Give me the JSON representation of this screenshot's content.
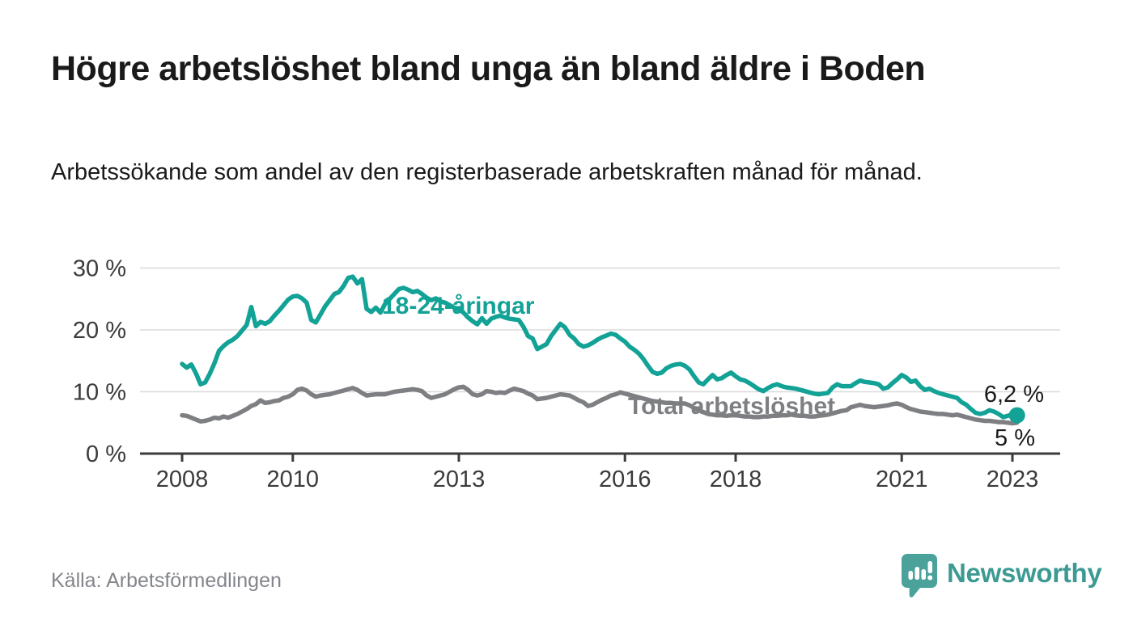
{
  "header": {
    "title": "Högre arbetslöshet bland unga än bland äldre i Boden",
    "subtitle": "Arbetssökande som andel av den registerbaserade arbetskraften månad för månad."
  },
  "footer": {
    "source": "Källa: Arbetsförmedlingen",
    "brand": "Newsworthy",
    "logo_icon": "bar-chart-speech-bubble-icon"
  },
  "colors": {
    "youth_line": "#12a296",
    "total_line": "#7e7f82",
    "text_dark": "#1a1a1a",
    "axis": "#3b3b3b",
    "grid": "#dbdbdb",
    "source": "#84858b",
    "brand": "#3d9a93",
    "bubble": "#4aa29b"
  },
  "chart_data": {
    "type": "line",
    "title": "Högre arbetslöshet bland unga än bland äldre i Boden",
    "unit": "%",
    "x_start": "2008-01",
    "x_end": "2023-02",
    "x_interval": "monthly",
    "x_ticks": [
      2008,
      2010,
      2013,
      2016,
      2018,
      2021,
      2023
    ],
    "y_ticks": [
      0,
      10,
      20,
      30
    ],
    "y_tick_labels": [
      "0 %",
      "10 %",
      "20 %",
      "30 %"
    ],
    "ylim": [
      0,
      32
    ],
    "grid": "horizontal",
    "legend_position": "inline-labels",
    "series": [
      {
        "id": "youth",
        "name": "18-24-åringar",
        "label": "18-24-åringar",
        "end_label": "6,2 %",
        "end_value": 6.2,
        "color": "#12a296",
        "values": [
          14.5,
          13.9,
          14.4,
          13.0,
          11.2,
          11.5,
          12.9,
          14.6,
          16.6,
          17.4,
          18.0,
          18.4,
          19.0,
          19.9,
          20.8,
          23.7,
          20.6,
          21.3,
          21.0,
          21.4,
          22.3,
          23.1,
          24.0,
          24.9,
          25.4,
          25.5,
          25.1,
          24.4,
          21.6,
          21.2,
          22.5,
          23.8,
          24.8,
          25.8,
          26.1,
          27.1,
          28.4,
          28.6,
          27.5,
          28.2,
          23.4,
          22.9,
          23.6,
          22.8,
          24.2,
          25.0,
          25.8,
          26.6,
          26.8,
          26.5,
          26.1,
          26.3,
          25.8,
          25.2,
          24.8,
          25.1,
          24.6,
          24.4,
          24.0,
          23.6,
          23.3,
          22.8,
          22.0,
          21.4,
          20.9,
          21.9,
          21.0,
          21.8,
          22.1,
          22.3,
          22.0,
          21.8,
          21.7,
          21.6,
          20.5,
          19.0,
          18.6,
          16.9,
          17.3,
          17.7,
          19.0,
          20.0,
          21.0,
          20.4,
          19.2,
          18.6,
          17.7,
          17.3,
          17.5,
          17.9,
          18.4,
          18.8,
          19.1,
          19.4,
          19.2,
          18.6,
          18.1,
          17.3,
          16.8,
          16.2,
          15.3,
          14.2,
          13.2,
          12.9,
          13.1,
          13.8,
          14.2,
          14.4,
          14.5,
          14.2,
          13.6,
          12.5,
          11.5,
          11.2,
          12.0,
          12.7,
          12.0,
          12.2,
          12.7,
          13.1,
          12.5,
          12.0,
          11.8,
          11.4,
          10.9,
          10.4,
          10.1,
          10.6,
          11.0,
          11.2,
          10.9,
          10.7,
          10.6,
          10.5,
          10.3,
          10.1,
          9.9,
          9.7,
          9.6,
          9.7,
          9.8,
          10.7,
          11.2,
          10.9,
          10.9,
          10.9,
          11.4,
          11.8,
          11.6,
          11.5,
          11.4,
          11.2,
          10.5,
          10.7,
          11.4,
          12.0,
          12.7,
          12.3,
          11.6,
          11.8,
          10.9,
          10.3,
          10.5,
          10.1,
          9.8,
          9.6,
          9.4,
          9.2,
          9.0,
          8.3,
          7.9,
          7.2,
          6.6,
          6.4,
          6.6,
          7.0,
          6.8,
          6.4,
          5.9,
          6.1,
          6.4,
          6.2
        ]
      },
      {
        "id": "total",
        "name": "Total arbetslöshet",
        "label": "Total arbetslöshet",
        "end_label": "5 %",
        "end_value": 5.0,
        "color": "#7e7f82",
        "values": [
          6.2,
          6.1,
          5.8,
          5.5,
          5.2,
          5.3,
          5.5,
          5.8,
          5.7,
          6.0,
          5.8,
          6.1,
          6.4,
          6.8,
          7.2,
          7.7,
          8.0,
          8.6,
          8.2,
          8.3,
          8.5,
          8.6,
          9.0,
          9.2,
          9.6,
          10.3,
          10.5,
          10.2,
          9.6,
          9.2,
          9.4,
          9.5,
          9.6,
          9.8,
          10.0,
          10.2,
          10.4,
          10.6,
          10.3,
          9.8,
          9.4,
          9.5,
          9.6,
          9.6,
          9.6,
          9.8,
          10.0,
          10.1,
          10.2,
          10.3,
          10.4,
          10.3,
          10.1,
          9.4,
          9.0,
          9.2,
          9.4,
          9.6,
          10.0,
          10.4,
          10.7,
          10.8,
          10.3,
          9.6,
          9.4,
          9.6,
          10.1,
          10.0,
          9.8,
          9.9,
          9.8,
          10.2,
          10.5,
          10.3,
          10.1,
          9.7,
          9.4,
          8.8,
          8.9,
          9.0,
          9.2,
          9.4,
          9.6,
          9.5,
          9.4,
          9.0,
          8.6,
          8.3,
          7.7,
          7.9,
          8.3,
          8.7,
          9.0,
          9.4,
          9.6,
          9.9,
          9.7,
          9.5,
          9.3,
          9.1,
          8.9,
          8.7,
          8.5,
          8.4,
          8.3,
          8.2,
          8.2,
          8.1,
          8.1,
          8.1,
          7.8,
          7.4,
          7.0,
          6.7,
          6.4,
          6.3,
          6.2,
          6.2,
          6.1,
          6.2,
          6.2,
          6.1,
          6.0,
          6.0,
          5.9,
          5.9,
          6.0,
          6.0,
          6.1,
          6.1,
          6.2,
          6.2,
          6.3,
          6.2,
          6.1,
          6.1,
          6.0,
          6.0,
          6.1,
          6.2,
          6.3,
          6.5,
          6.7,
          6.9,
          7.0,
          7.5,
          7.7,
          7.9,
          7.7,
          7.6,
          7.5,
          7.6,
          7.7,
          7.8,
          8.0,
          8.1,
          7.9,
          7.5,
          7.2,
          7.0,
          6.8,
          6.7,
          6.6,
          6.5,
          6.4,
          6.4,
          6.3,
          6.2,
          6.3,
          6.1,
          5.9,
          5.7,
          5.5,
          5.4,
          5.3,
          5.3,
          5.2,
          5.1,
          5.1,
          5.0,
          4.9,
          5.0
        ]
      }
    ]
  }
}
